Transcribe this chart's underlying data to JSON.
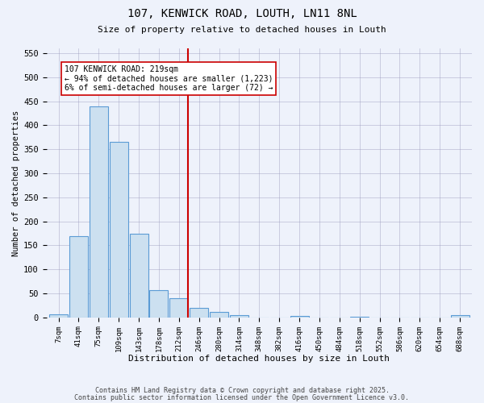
{
  "title1": "107, KENWICK ROAD, LOUTH, LN11 8NL",
  "title2": "Size of property relative to detached houses in Louth",
  "xlabel": "Distribution of detached houses by size in Louth",
  "ylabel": "Number of detached properties",
  "bins": [
    "7sqm",
    "41sqm",
    "75sqm",
    "109sqm",
    "143sqm",
    "178sqm",
    "212sqm",
    "246sqm",
    "280sqm",
    "314sqm",
    "348sqm",
    "382sqm",
    "416sqm",
    "450sqm",
    "484sqm",
    "518sqm",
    "552sqm",
    "586sqm",
    "620sqm",
    "654sqm",
    "688sqm"
  ],
  "counts": [
    7,
    170,
    440,
    365,
    175,
    57,
    40,
    20,
    11,
    5,
    0,
    0,
    3,
    0,
    0,
    2,
    0,
    0,
    0,
    0,
    4
  ],
  "bar_color": "#cce0f0",
  "bar_edge_color": "#5b9bd5",
  "vline_x_index": 6,
  "vline_color": "#cc0000",
  "annotation_line1": "107 KENWICK ROAD: 219sqm",
  "annotation_line2": "← 94% of detached houses are smaller (1,223)",
  "annotation_line3": "6% of semi-detached houses are larger (72) →",
  "annotation_box_color": "#ffffff",
  "annotation_box_edge": "#cc0000",
  "footer1": "Contains HM Land Registry data © Crown copyright and database right 2025.",
  "footer2": "Contains public sector information licensed under the Open Government Licence v3.0.",
  "bg_color": "#eef2fb",
  "ylim": [
    0,
    560
  ],
  "yticks": [
    0,
    50,
    100,
    150,
    200,
    250,
    300,
    350,
    400,
    450,
    500,
    550
  ]
}
